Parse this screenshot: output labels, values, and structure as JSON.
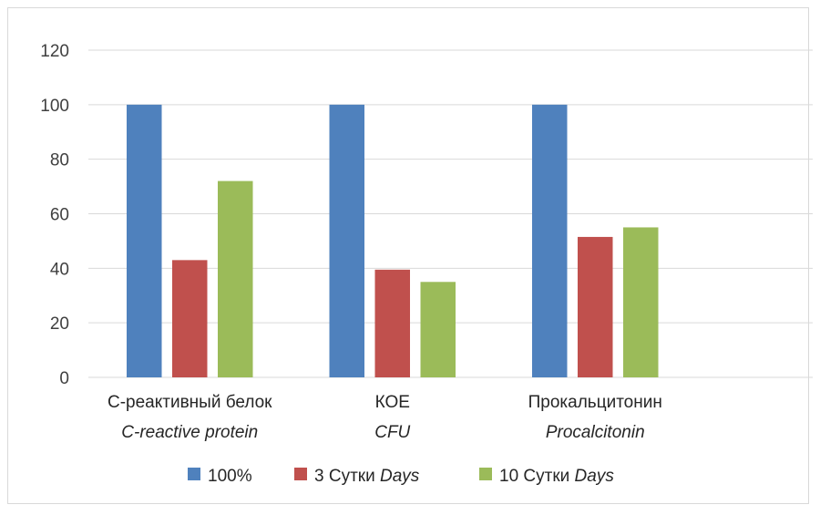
{
  "chart_data": {
    "type": "bar",
    "categories": [
      {
        "line1": "С-реактивный белок",
        "line2": "C-reactive protein"
      },
      {
        "line1": "КОЕ",
        "line2": "CFU"
      },
      {
        "line1": "Прокальцитонин",
        "line2": "Procalcitonin"
      }
    ],
    "series": [
      {
        "name": "100%",
        "name_parts": [
          "100%",
          ""
        ],
        "color": "#4f81bd",
        "values": [
          100,
          100,
          100
        ]
      },
      {
        "name": "3 Сутки Days",
        "name_parts": [
          "3 Сутки ",
          "Days"
        ],
        "color": "#c0504d",
        "values": [
          43,
          39.5,
          51.5
        ]
      },
      {
        "name": "10 Сутки Days",
        "name_parts": [
          "10 Сутки ",
          "Days"
        ],
        "color": "#9bbb59",
        "values": [
          72,
          35,
          55
        ]
      }
    ],
    "ylim": [
      0,
      120
    ],
    "yticks": [
      0,
      20,
      40,
      60,
      80,
      100,
      120
    ],
    "grid": true,
    "legend": "bottom"
  }
}
